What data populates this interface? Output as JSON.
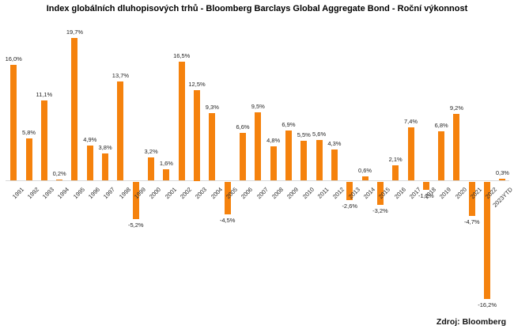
{
  "title": "Index globálních dluhopisových trhů - Bloomberg Barclays Global Aggregate Bond - Roční výkonnost",
  "source": "Zdroj: Bloomberg",
  "colors": {
    "bar": "#F5820D",
    "axis_line": "#D9D9D9",
    "title_text": "#000000",
    "label_text": "#1F1F1F",
    "background": "#FFFFFF"
  },
  "chart_data": {
    "type": "bar",
    "title": "Index globálních dluhopisových trhů - Bloomberg Barclays Global Aggregate Bond - Roční výkonnost",
    "xlabel": "",
    "ylabel": "",
    "legend": "none",
    "grid": false,
    "ylim": [
      -18,
      21
    ],
    "value_suffix": "%",
    "decimal_separator": ",",
    "bar_color": "#F5820D",
    "categories": [
      "1991",
      "1992",
      "1993",
      "1994",
      "1995",
      "1996",
      "1997",
      "1998",
      "1999",
      "2000",
      "2001",
      "2002",
      "2003",
      "2004",
      "2005",
      "2006",
      "2007",
      "2008",
      "2009",
      "2010",
      "2011",
      "2012",
      "2013",
      "2014",
      "2015",
      "2016",
      "2017",
      "2018",
      "2019",
      "2020",
      "2021",
      "2022",
      "2023YTD"
    ],
    "values": [
      16.0,
      5.8,
      11.1,
      0.2,
      19.7,
      4.9,
      3.8,
      13.7,
      -5.2,
      3.2,
      1.6,
      16.5,
      12.5,
      9.3,
      -4.5,
      6.6,
      9.5,
      4.8,
      6.9,
      5.5,
      5.6,
      4.3,
      -2.6,
      0.6,
      -3.2,
      2.1,
      7.4,
      -1.2,
      6.8,
      9.2,
      -4.7,
      -16.2,
      0.3
    ],
    "labels": [
      "16,0%",
      "5,8%",
      "11,1%",
      "0,2%",
      "19,7%",
      "4,9%",
      "3,8%",
      "13,7%",
      "-5,2%",
      "3,2%",
      "1,6%",
      "16,5%",
      "12,5%",
      "9,3%",
      "-4,5%",
      "6,6%",
      "9,5%",
      "4,8%",
      "6,9%",
      "5,5%",
      "5,6%",
      "4,3%",
      "-2,6%",
      "0,6%",
      "-3,2%",
      "2,1%",
      "7,4%",
      "-1,2%",
      "6,8%",
      "9,2%",
      "-4,7%",
      "-16,2%",
      "0,3%"
    ],
    "source_note": "Zdroj: Bloomberg"
  }
}
